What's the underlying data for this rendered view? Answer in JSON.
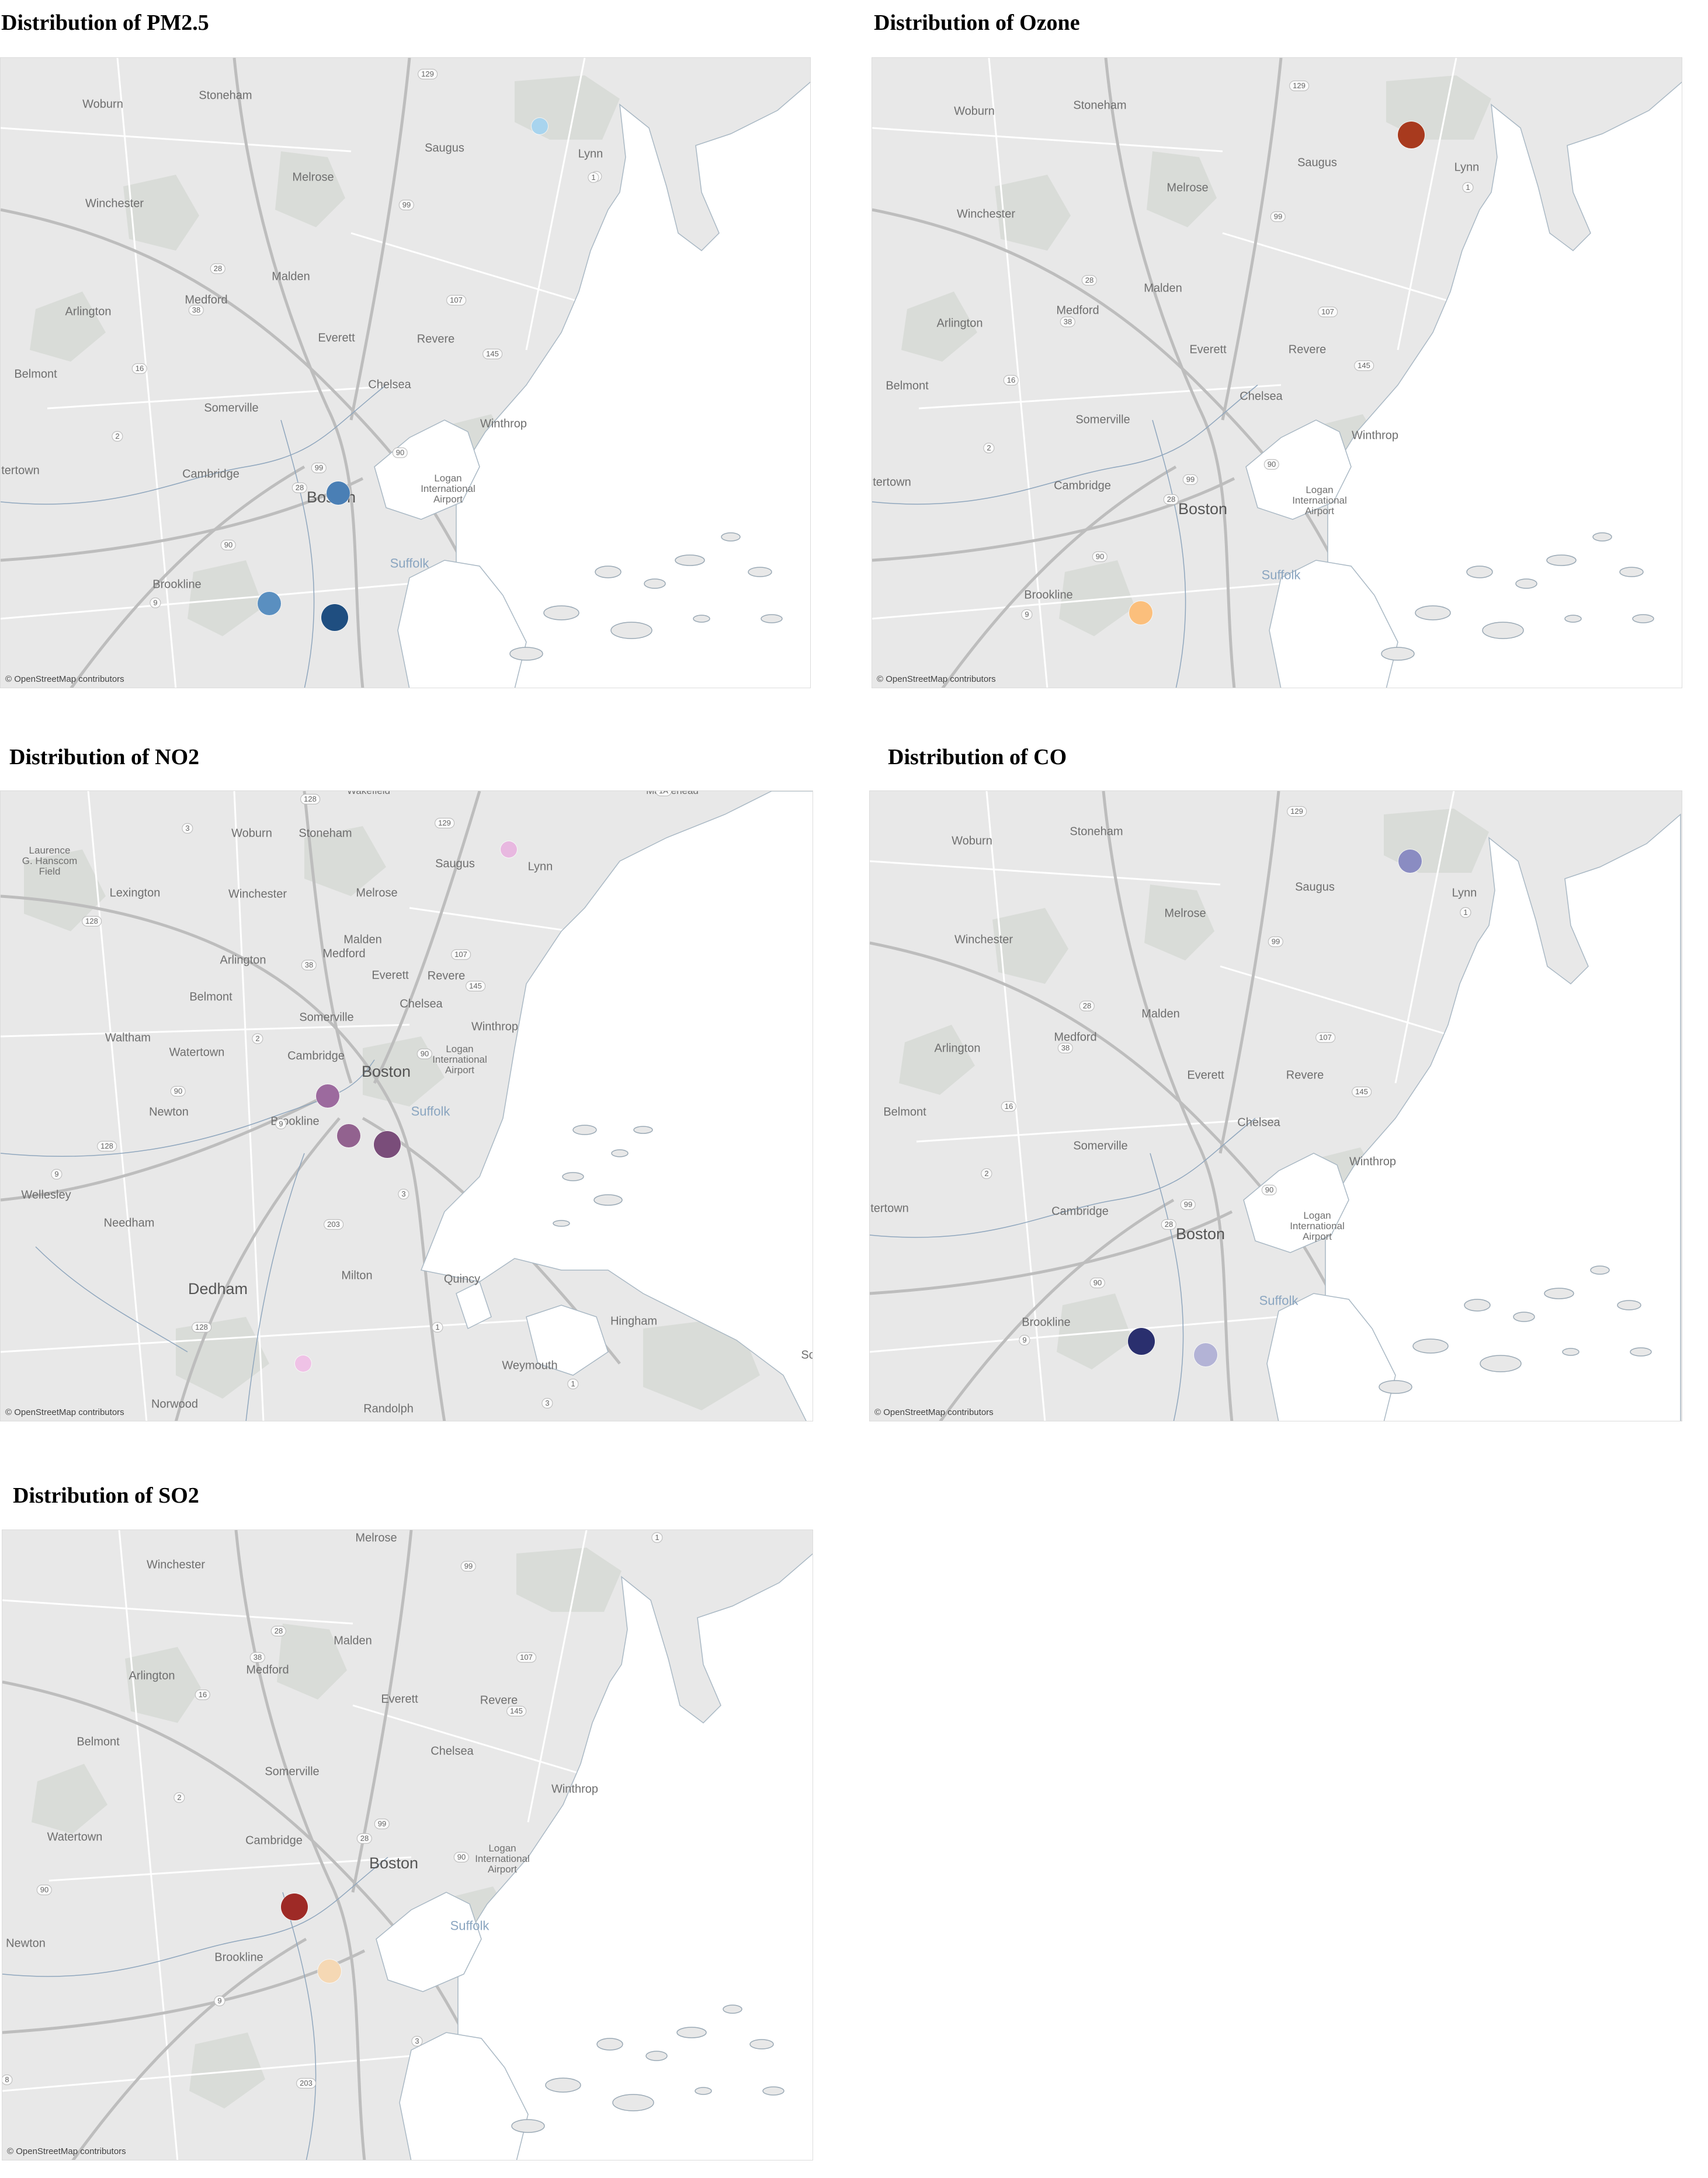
{
  "attribution": "© OpenStreetMap contributors",
  "colors": {
    "land": "#e8e8e8",
    "water": "#ffffff",
    "park": "#d9dcd8",
    "road": "#ffffff",
    "highway": "#bdbdbd",
    "boundary": "#8fa6bd"
  },
  "panels": [
    {
      "id": "pm25",
      "title": "Distribution of PM2.5",
      "labels": [
        {
          "text": "Woburn",
          "size": ""
        },
        {
          "text": "Stoneham",
          "size": ""
        },
        {
          "text": "Saugus",
          "size": ""
        },
        {
          "text": "Lynn",
          "size": ""
        },
        {
          "text": "Melrose",
          "size": ""
        },
        {
          "text": "Winchester",
          "size": ""
        },
        {
          "text": "Malden",
          "size": ""
        },
        {
          "text": "Medford",
          "size": ""
        },
        {
          "text": "Arlington",
          "size": ""
        },
        {
          "text": "Everett",
          "size": ""
        },
        {
          "text": "Revere",
          "size": ""
        },
        {
          "text": "Belmont",
          "size": ""
        },
        {
          "text": "Chelsea",
          "size": ""
        },
        {
          "text": "Somerville",
          "size": ""
        },
        {
          "text": "Winthrop",
          "size": ""
        },
        {
          "text": "tertown",
          "size": ""
        },
        {
          "text": "Cambridge",
          "size": ""
        },
        {
          "text": "Boston",
          "size": "big"
        },
        {
          "text": "Logan\nInternational\nAirport",
          "size": "small"
        },
        {
          "text": "Suffolk",
          "size": "county"
        },
        {
          "text": "Brookline",
          "size": ""
        }
      ],
      "shields": [
        "129",
        "99",
        "1",
        "28",
        "38",
        "107",
        "16",
        "145",
        "2",
        "99",
        "28",
        "90",
        "90",
        "9",
        "1"
      ],
      "markers": [
        {
          "color": "#a8d4ee",
          "size": "small"
        },
        {
          "color": "#4a7fb5",
          "size": "medium"
        },
        {
          "color": "#5a8fc0",
          "size": "medium"
        },
        {
          "color": "#1f4e80",
          "size": "large"
        }
      ]
    },
    {
      "id": "ozone",
      "title": "Distribution of Ozone",
      "labels": [
        {
          "text": "Woburn",
          "size": ""
        },
        {
          "text": "Stoneham",
          "size": ""
        },
        {
          "text": "Saugus",
          "size": ""
        },
        {
          "text": "Lynn",
          "size": ""
        },
        {
          "text": "Melrose",
          "size": ""
        },
        {
          "text": "Winchester",
          "size": ""
        },
        {
          "text": "Malden",
          "size": ""
        },
        {
          "text": "Medford",
          "size": ""
        },
        {
          "text": "Arlington",
          "size": ""
        },
        {
          "text": "Everett",
          "size": ""
        },
        {
          "text": "Revere",
          "size": ""
        },
        {
          "text": "Belmont",
          "size": ""
        },
        {
          "text": "Chelsea",
          "size": ""
        },
        {
          "text": "Somerville",
          "size": ""
        },
        {
          "text": "Winthrop",
          "size": ""
        },
        {
          "text": "tertown",
          "size": ""
        },
        {
          "text": "Cambridge",
          "size": ""
        },
        {
          "text": "Boston",
          "size": "big"
        },
        {
          "text": "Logan\nInternational\nAirport",
          "size": "small"
        },
        {
          "text": "Suffolk",
          "size": "county"
        },
        {
          "text": "Brookline",
          "size": ""
        }
      ],
      "shields": [
        "129",
        "99",
        "1",
        "28",
        "38",
        "107",
        "16",
        "145",
        "2",
        "99",
        "28",
        "90",
        "90",
        "9",
        "1"
      ],
      "markers": [
        {
          "color": "#a83a1e",
          "size": "large"
        },
        {
          "color": "#fbbf7c",
          "size": "medium"
        }
      ]
    },
    {
      "id": "no2",
      "title": "Distribution of NO2",
      "labels": [
        {
          "text": "Wakefield",
          "size": "small"
        },
        {
          "text": "Marblehead",
          "size": "small"
        },
        {
          "text": "Woburn",
          "size": ""
        },
        {
          "text": "Stoneham",
          "size": ""
        },
        {
          "text": "Laurence\nG. Hanscom\nField",
          "size": "small"
        },
        {
          "text": "Saugus",
          "size": ""
        },
        {
          "text": "Lynn",
          "size": ""
        },
        {
          "text": "Lexington",
          "size": ""
        },
        {
          "text": "Winchester",
          "size": ""
        },
        {
          "text": "Melrose",
          "size": ""
        },
        {
          "text": "Malden",
          "size": ""
        },
        {
          "text": "Arlington",
          "size": ""
        },
        {
          "text": "Medford",
          "size": ""
        },
        {
          "text": "Everett",
          "size": ""
        },
        {
          "text": "Revere",
          "size": ""
        },
        {
          "text": "Belmont",
          "size": ""
        },
        {
          "text": "Somerville",
          "size": ""
        },
        {
          "text": "Chelsea",
          "size": ""
        },
        {
          "text": "Waltham",
          "size": ""
        },
        {
          "text": "Watertown",
          "size": ""
        },
        {
          "text": "Cambridge",
          "size": ""
        },
        {
          "text": "Winthrop",
          "size": ""
        },
        {
          "text": "Boston",
          "size": "big"
        },
        {
          "text": "Logan\nInternational\nAirport",
          "size": "small"
        },
        {
          "text": "Newton",
          "size": ""
        },
        {
          "text": "Suffolk",
          "size": "county"
        },
        {
          "text": "Brookline",
          "size": ""
        },
        {
          "text": "Wellesley",
          "size": ""
        },
        {
          "text": "Needham",
          "size": ""
        },
        {
          "text": "Dedham",
          "size": "big"
        },
        {
          "text": "Milton",
          "size": ""
        },
        {
          "text": "Quincy",
          "size": ""
        },
        {
          "text": "Hingham",
          "size": ""
        },
        {
          "text": "Weymouth",
          "size": ""
        },
        {
          "text": "Norwood",
          "size": ""
        },
        {
          "text": "Randolph",
          "size": ""
        },
        {
          "text": "Sc",
          "size": ""
        }
      ],
      "shields": [
        "128",
        "3",
        "129",
        "1A",
        "128",
        "38",
        "107",
        "145",
        "2",
        "90",
        "90",
        "128",
        "9",
        "9",
        "3",
        "203",
        "128",
        "1",
        "3",
        "1"
      ],
      "markers": [
        {
          "color": "#e8b8e0",
          "size": "small"
        },
        {
          "color": "#9c6a9e",
          "size": "medium"
        },
        {
          "color": "#92628f",
          "size": "medium"
        },
        {
          "color": "#7a4d7a",
          "size": "large"
        },
        {
          "color": "#efc2e6",
          "size": "small"
        }
      ]
    },
    {
      "id": "co",
      "title": "Distribution of CO",
      "labels": [
        {
          "text": "Woburn",
          "size": ""
        },
        {
          "text": "Stoneham",
          "size": ""
        },
        {
          "text": "Saugus",
          "size": ""
        },
        {
          "text": "Lynn",
          "size": ""
        },
        {
          "text": "Melrose",
          "size": ""
        },
        {
          "text": "Winchester",
          "size": ""
        },
        {
          "text": "Malden",
          "size": ""
        },
        {
          "text": "Medford",
          "size": ""
        },
        {
          "text": "Arlington",
          "size": ""
        },
        {
          "text": "Everett",
          "size": ""
        },
        {
          "text": "Revere",
          "size": ""
        },
        {
          "text": "Belmont",
          "size": ""
        },
        {
          "text": "Chelsea",
          "size": ""
        },
        {
          "text": "Somerville",
          "size": ""
        },
        {
          "text": "Winthrop",
          "size": ""
        },
        {
          "text": "tertown",
          "size": ""
        },
        {
          "text": "Cambridge",
          "size": ""
        },
        {
          "text": "Boston",
          "size": "big"
        },
        {
          "text": "Logan\nInternational\nAirport",
          "size": "small"
        },
        {
          "text": "Suffolk",
          "size": "county"
        },
        {
          "text": "Brookline",
          "size": ""
        }
      ],
      "shields": [
        "129",
        "99",
        "1",
        "28",
        "38",
        "107",
        "16",
        "145",
        "2",
        "99",
        "28",
        "90",
        "90",
        "9",
        "1"
      ],
      "markers": [
        {
          "color": "#8a8cc2",
          "size": "medium"
        },
        {
          "color": "#2a2f6e",
          "size": "large"
        },
        {
          "color": "#b3b3d6",
          "size": "medium"
        }
      ]
    },
    {
      "id": "so2",
      "title": "Distribution of SO2",
      "labels": [
        {
          "text": "Melrose",
          "size": ""
        },
        {
          "text": "Winchester",
          "size": ""
        },
        {
          "text": "Malden",
          "size": ""
        },
        {
          "text": "Medford",
          "size": ""
        },
        {
          "text": "Arlington",
          "size": ""
        },
        {
          "text": "Everett",
          "size": ""
        },
        {
          "text": "Revere",
          "size": ""
        },
        {
          "text": "Belmont",
          "size": ""
        },
        {
          "text": "Chelsea",
          "size": ""
        },
        {
          "text": "Somerville",
          "size": ""
        },
        {
          "text": "Winthrop",
          "size": ""
        },
        {
          "text": "Watertown",
          "size": ""
        },
        {
          "text": "Cambridge",
          "size": ""
        },
        {
          "text": "Boston",
          "size": "big"
        },
        {
          "text": "Logan\nInternational\nAirport",
          "size": "small"
        },
        {
          "text": "Suffolk",
          "size": "county"
        },
        {
          "text": "Newton",
          "size": ""
        },
        {
          "text": "Brookline",
          "size": ""
        }
      ],
      "shields": [
        "99",
        "1",
        "28",
        "38",
        "107",
        "16",
        "145",
        "2",
        "99",
        "28",
        "90",
        "90",
        "9",
        "3",
        "203",
        "8"
      ],
      "markers": [
        {
          "color": "#9e2a26",
          "size": "large"
        },
        {
          "color": "#f5d8b4",
          "size": "medium"
        }
      ]
    }
  ]
}
